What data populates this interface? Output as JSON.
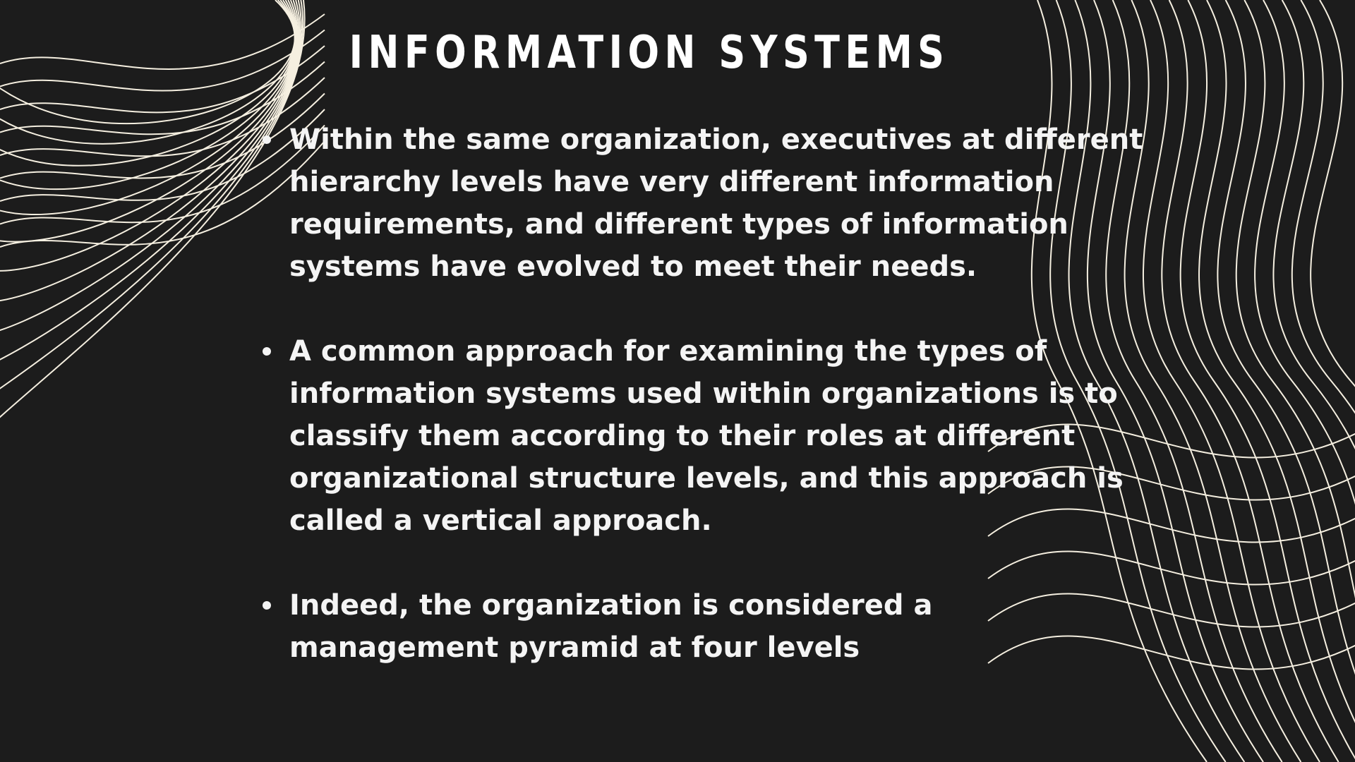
{
  "slide": {
    "title": "INFORMATION SYSTEMS",
    "bullets": [
      "Within the same organization, executives at different hierarchy levels have very different information requirements, and different types of information systems have evolved to meet their needs.",
      "A common approach for examining the types of information systems used within organizations is to classify them according to their roles at different organizational structure levels, and this approach is called a vertical approach.",
      "Indeed, the organization is considered a management pyramid at four levels"
    ]
  },
  "colors": {
    "background": "#1c1c1c",
    "text": "#f4f4f4",
    "lines": "#f5efe0"
  },
  "icons": {
    "top_left": "wave-mesh-decoration",
    "right": "wavy-lines-decoration"
  }
}
